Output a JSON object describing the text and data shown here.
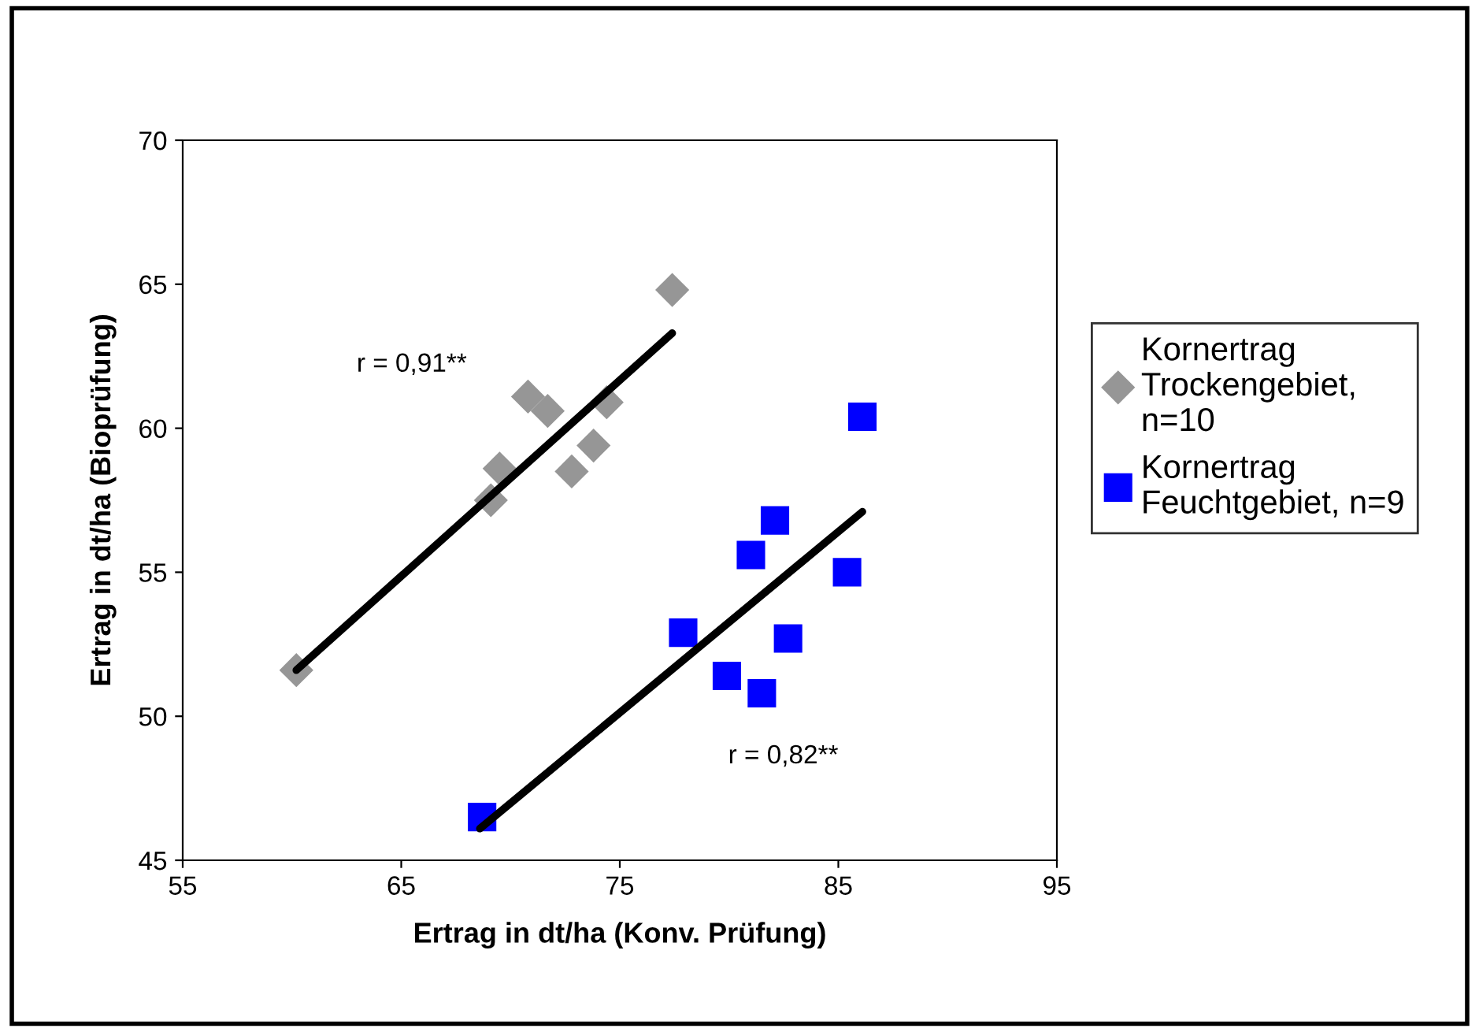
{
  "chart_data": {
    "type": "scatter",
    "xlabel": "Ertrag in dt/ha (Konv. Prüfung)",
    "ylabel": "Ertrag in dt/ha (Bioprüfung)",
    "xlim": [
      55,
      95
    ],
    "xticks": [
      55,
      65,
      75,
      85,
      95
    ],
    "ylim": [
      45,
      70
    ],
    "yticks": [
      45,
      50,
      55,
      60,
      65,
      70
    ],
    "grid": false,
    "legend": "right",
    "series": [
      {
        "name": "Kornertrag\nTrockengebiet,\nn=10",
        "color": "#969696",
        "marker": "diamond",
        "x": [
          60.2,
          69.1,
          69.5,
          70.8,
          71.7,
          72.8,
          73.8,
          74.4,
          77.4
        ],
        "values": [
          51.6,
          57.5,
          58.6,
          61.1,
          60.6,
          58.5,
          59.4,
          60.9,
          64.8
        ]
      },
      {
        "name": "Kornertrag\nFeuchtgebiet, n=9",
        "color": "#0000ff",
        "marker": "square",
        "x": [
          68.7,
          77.9,
          79.9,
          81.5,
          81.0,
          82.1,
          82.7,
          85.4,
          86.1
        ],
        "values": [
          46.5,
          52.9,
          51.4,
          50.8,
          55.6,
          56.8,
          52.7,
          55.0,
          60.4
        ]
      },
      {
        "type": "line",
        "color": "#000000",
        "line_style": "solid",
        "x": [
          60.2,
          77.4
        ],
        "values": [
          51.6,
          63.3
        ]
      },
      {
        "type": "line",
        "color": "#000000",
        "line_style": "solid",
        "x": [
          68.6,
          86.1
        ],
        "values": [
          46.1,
          57.1
        ]
      }
    ],
    "annotations": [
      "r = 0,91**",
      "r = 0,82**"
    ]
  }
}
